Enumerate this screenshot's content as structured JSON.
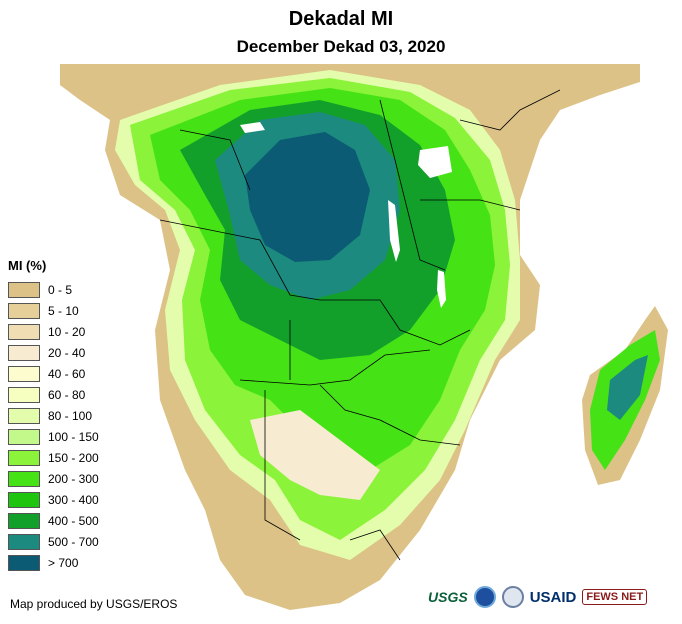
{
  "title": "Dekadal MI",
  "subtitle": "December Dekad 03, 2020",
  "legend": {
    "title": "MI (%)",
    "items": [
      {
        "label": "0 - 5",
        "color": "#dcc286"
      },
      {
        "label": "5 - 10",
        "color": "#e6cf99"
      },
      {
        "label": "10 - 20",
        "color": "#f0ddb4"
      },
      {
        "label": "20 - 40",
        "color": "#f7ecd1"
      },
      {
        "label": "40 - 60",
        "color": "#fdfccf"
      },
      {
        "label": "60 - 80",
        "color": "#f6ffc0"
      },
      {
        "label": "80 - 100",
        "color": "#e3fdac"
      },
      {
        "label": "100 - 150",
        "color": "#c3f98a"
      },
      {
        "label": "150 - 200",
        "color": "#8af33a"
      },
      {
        "label": "200 - 300",
        "color": "#45e216"
      },
      {
        "label": "300 - 400",
        "color": "#1ec40e"
      },
      {
        "label": "400 - 500",
        "color": "#13a02a"
      },
      {
        "label": "500 - 700",
        "color": "#1c8a7e"
      },
      {
        "label": "> 700",
        "color": "#0c5b74"
      }
    ]
  },
  "credit": "Map produced by USGS/EROS",
  "logos": {
    "usgs": "USGS",
    "usaid": "USAID",
    "fews": "FEWS NET"
  },
  "colors": {
    "ocean": "#ffffff",
    "dry_land": "#dcc286",
    "boundary": "#000000"
  }
}
